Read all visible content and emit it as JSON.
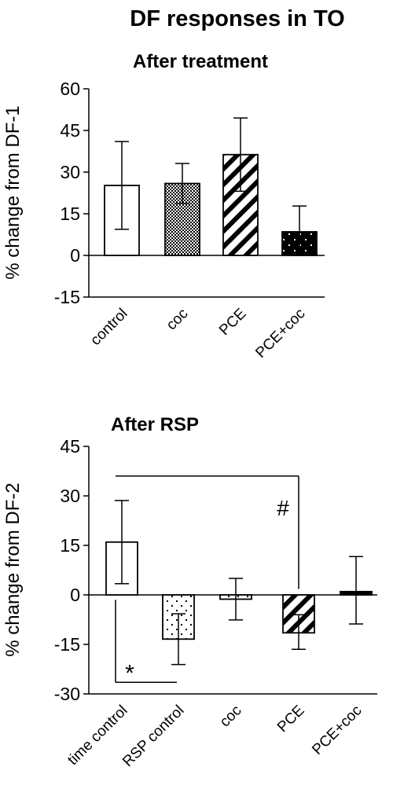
{
  "figure_title": "DF responses in TO",
  "chart_data": [
    {
      "type": "bar",
      "title": "After treatment",
      "ylabel": "% change from DF-1",
      "xlabel": "",
      "ylim": [
        -15,
        60
      ],
      "yticks": [
        "60",
        "45",
        "30",
        "15",
        "0",
        "-15"
      ],
      "grid": false,
      "legend": "none",
      "categories": [
        "control",
        "coc",
        "PCE",
        "PCE+coc"
      ],
      "values": [
        25.2,
        25.9,
        36.3,
        8.5
      ],
      "error_upper": [
        15.8,
        7.2,
        13.2,
        9.3
      ],
      "error_lower": [
        15.8,
        7.2,
        13.2,
        8.5
      ],
      "fills": [
        "white",
        "checker",
        "diagonal-stripes",
        "black-dotted"
      ]
    },
    {
      "type": "bar",
      "title": "After RSP",
      "ylabel": "% change from DF-2",
      "xlabel": "",
      "ylim": [
        -30,
        45
      ],
      "yticks": [
        "45",
        "30",
        "15",
        "0",
        "-15",
        "-30"
      ],
      "grid": false,
      "legend": "none",
      "categories": [
        "time control",
        "RSP control",
        "coc",
        "PCE",
        "PCE+coc"
      ],
      "values": [
        16.0,
        -13.4,
        -1.3,
        -11.5,
        1.0
      ],
      "error_upper": [
        12.6,
        7.7,
        6.3,
        5.5,
        10.6
      ],
      "error_lower": [
        12.6,
        7.7,
        6.3,
        5.0,
        9.8
      ],
      "fills": [
        "white",
        "dotted",
        "dotted",
        "diagonal-stripes",
        "black"
      ],
      "annotations": [
        {
          "text": "#",
          "from_category": "time control",
          "to_category": "PCE",
          "level": 36
        },
        {
          "text": "*",
          "from_category": "time control",
          "to_category": "RSP control",
          "level": -26.5
        }
      ]
    }
  ]
}
